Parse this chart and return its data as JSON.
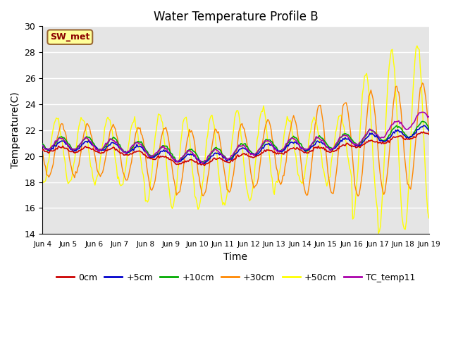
{
  "title": "Water Temperature Profile B",
  "xlabel": "Time",
  "ylabel": "Temperature(C)",
  "ylim": [
    14,
    30
  ],
  "yticks": [
    14,
    16,
    18,
    20,
    22,
    24,
    26,
    28,
    30
  ],
  "background_color": "#e5e5e5",
  "annotation_text": "SW_met",
  "annotation_color": "#8b0000",
  "annotation_bg": "#ffff99",
  "annotation_border": "#996633",
  "series_colors": {
    "0cm": "#cc0000",
    "+5cm": "#0000cc",
    "+10cm": "#00aa00",
    "+30cm": "#ff8800",
    "+50cm": "#ffff00",
    "TC_temp11": "#aa00aa"
  },
  "x_start": 4,
  "x_end": 19,
  "x_tick_positions": [
    4,
    5,
    6,
    7,
    8,
    9,
    10,
    11,
    12,
    13,
    14,
    15,
    16,
    17,
    18,
    19
  ],
  "x_tick_labels": [
    "Jun 4",
    "Jun 5",
    "Jun 6",
    "Jun 7",
    "Jun 8",
    "Jun 9",
    "Jun 10",
    "Jun 11",
    "Jun 12",
    "Jun 13",
    "Jun 14",
    "Jun 15",
    "Jun 16",
    "Jun 17",
    "Jun 18",
    "Jun 19"
  ],
  "figsize": [
    6.4,
    4.8
  ],
  "dpi": 100
}
